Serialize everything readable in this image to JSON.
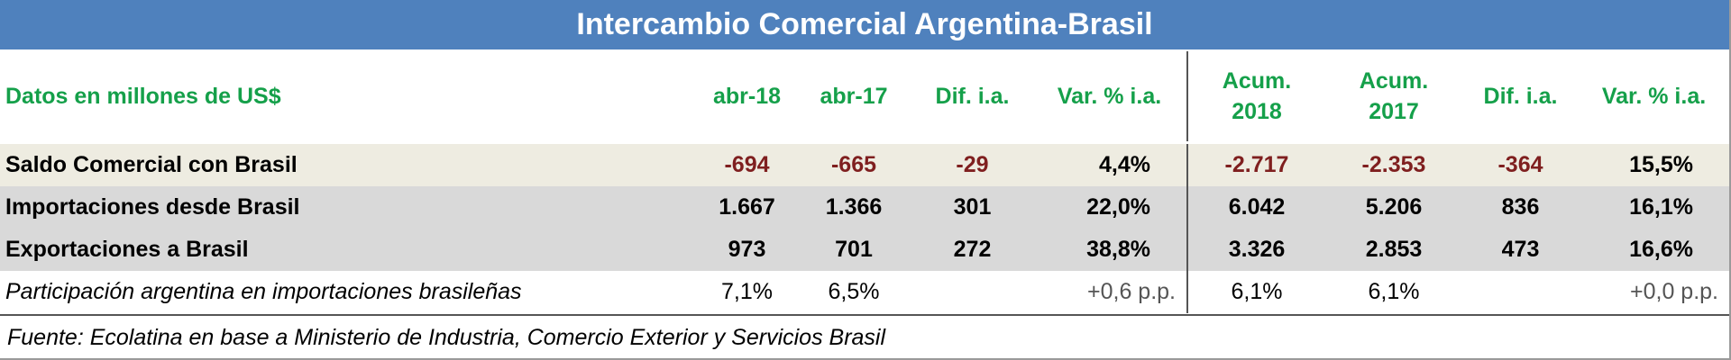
{
  "title": "Intercambio Comercial Argentina-Brasil",
  "table": {
    "header": [
      "Datos en millones de US$",
      "abr-18",
      "abr-17",
      "Dif. i.a.",
      "Var. % i.a.",
      "Acum.\n2018",
      "Acum.\n2017",
      "Dif. i.a.",
      "Var. % i.a."
    ],
    "rows": [
      [
        "Saldo Comercial con Brasil",
        "-694",
        "-665",
        "-29",
        "4,4%",
        "-2.717",
        "-2.353",
        "-364",
        "15,5%"
      ],
      [
        "Importaciones desde Brasil",
        "1.667",
        "1.366",
        "301",
        "22,0%",
        "6.042",
        "5.206",
        "836",
        "16,1%"
      ],
      [
        "Exportaciones a Brasil",
        "973",
        "701",
        "272",
        "38,8%",
        "3.326",
        "2.853",
        "473",
        "16,6%"
      ],
      [
        "Participación argentina en importaciones brasileñas",
        "7,1%",
        "6,5%",
        "",
        "+0,6 p.p.",
        "6,1%",
        "6,1%",
        "",
        "+0,0 p.p."
      ]
    ]
  },
  "footer": "Fuente: Ecolatina en base a Ministerio de Industria, Comercio Exterior y Servicios Brasil"
}
